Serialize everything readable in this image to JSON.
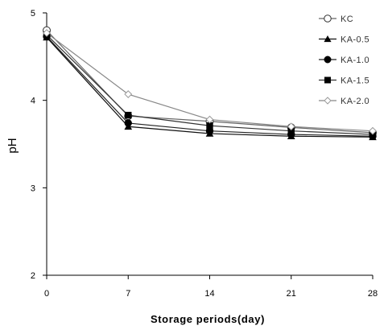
{
  "chart_data": {
    "type": "line",
    "xlabel": "Storage periods(day)",
    "ylabel": "pH",
    "x": [
      0,
      7,
      14,
      21,
      28
    ],
    "xlim": [
      0,
      28
    ],
    "ylim": [
      2,
      5
    ],
    "xticks": [
      0,
      7,
      14,
      21,
      28
    ],
    "yticks": [
      2,
      3,
      4,
      5
    ],
    "grid": false,
    "legend_position": "top-right",
    "series": [
      {
        "name": "KC",
        "marker": "open-circle",
        "values": [
          4.8,
          3.82,
          3.76,
          3.69,
          3.63
        ]
      },
      {
        "name": "KA-0.5",
        "marker": "filled-triangle",
        "values": [
          4.72,
          3.7,
          3.62,
          3.59,
          3.58
        ]
      },
      {
        "name": "KA-1.0",
        "marker": "filled-circle",
        "values": [
          4.73,
          3.74,
          3.65,
          3.61,
          3.59
        ]
      },
      {
        "name": "KA-1.5",
        "marker": "filled-square",
        "values": [
          4.75,
          3.83,
          3.71,
          3.65,
          3.61
        ]
      },
      {
        "name": "KA-2.0",
        "marker": "open-diamond",
        "values": [
          4.77,
          4.07,
          3.78,
          3.7,
          3.65
        ]
      }
    ]
  }
}
